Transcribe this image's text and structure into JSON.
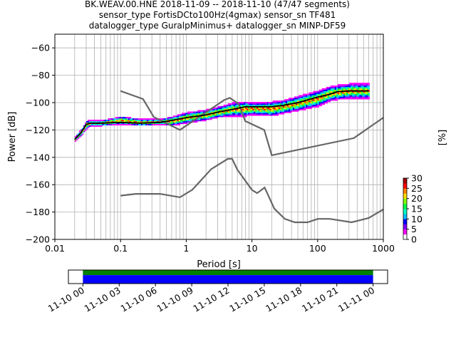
{
  "colors": {
    "noise_model": "#666666",
    "mean_line": "#000000",
    "timeline_green": "#008000",
    "timeline_blue": "#0000ff",
    "grid": "#b0b0b0"
  },
  "chart_data": [
    {
      "type": "heatmap",
      "title": [
        "BK.WEAV.00.HNE   2018-11-09 -- 2018-11-10  (47/47 segments)",
        "sensor_type FortisDCto100Hz(4gmax) sensor_sn TF481",
        "datalogger_type GuralpMinimus+ datalogger_sn MINP-DF59"
      ],
      "xlabel": "Period [s]",
      "ylabel": "Power [dB]",
      "xscale": "log",
      "xlim": [
        0.01,
        1000
      ],
      "ylim": [
        -200,
        -50
      ],
      "xticks": [
        {
          "value": 0.01,
          "label": "0.01"
        },
        {
          "value": 0.1,
          "label": "0.1"
        },
        {
          "value": 1,
          "label": "1"
        },
        {
          "value": 10,
          "label": "10"
        },
        {
          "value": 100,
          "label": "100"
        },
        {
          "value": 1000,
          "label": "1000"
        }
      ],
      "yticks": [
        -60,
        -80,
        -100,
        -120,
        -140,
        -160,
        -180,
        -200
      ],
      "grid": true,
      "colorbar": {
        "label": "[%]",
        "range": [
          0,
          30
        ],
        "ticks": [
          0,
          5,
          10,
          15,
          20,
          25,
          30
        ],
        "colormap": [
          "#ffffff",
          "#ff00ff",
          "#7f00ff",
          "#0000ff",
          "#00bfff",
          "#00ffc0",
          "#00ff40",
          "#80ff00",
          "#ffe000",
          "#ff7f00",
          "#ff0000",
          "#a00000"
        ]
      },
      "series": [
        {
          "role": "high_noise_model",
          "x": [
            0.1,
            0.22,
            0.32,
            0.8,
            3.8,
            4.6,
            6.3,
            7.9,
            15.4,
            20,
            354.8,
            1000
          ],
          "y": [
            -91.5,
            -97.4,
            -110.5,
            -120,
            -98,
            -96.5,
            -101,
            -113.5,
            -120,
            -138.5,
            -126,
            -111
          ]
        },
        {
          "role": "low_noise_model",
          "x": [
            0.1,
            0.17,
            0.4,
            0.8,
            1.24,
            2.4,
            4.3,
            5,
            6,
            10,
            12,
            15.6,
            21.9,
            31.6,
            45,
            70,
            101,
            154,
            328,
            600,
            1000
          ],
          "y": [
            -168,
            -166.7,
            -166.7,
            -169.2,
            -163.7,
            -148.6,
            -141.1,
            -141.1,
            -149,
            -163.8,
            -166.2,
            -162.1,
            -177.5,
            -185,
            -187.5,
            -187.5,
            -185,
            -185,
            -187.5,
            -184.4,
            -178
          ]
        },
        {
          "role": "mean_psd",
          "x": [
            0.02,
            0.025,
            0.03,
            0.035,
            0.05,
            0.1,
            0.2,
            0.4,
            0.6,
            1,
            2,
            3,
            5,
            8,
            10,
            20,
            30,
            50,
            100,
            150,
            200,
            300,
            600
          ],
          "y": [
            -127,
            -122,
            -116,
            -115,
            -115,
            -114.5,
            -115,
            -114.5,
            -113,
            -111,
            -109,
            -107,
            -105,
            -103,
            -103,
            -103,
            -102,
            -100,
            -96,
            -94,
            -92,
            -91.5,
            -91.5
          ]
        }
      ],
      "density_band": {
        "x": [
          0.02,
          0.025,
          0.03,
          0.035,
          0.05,
          0.1,
          0.2,
          0.4,
          0.6,
          1,
          2,
          3,
          5,
          8,
          10,
          20,
          30,
          50,
          100,
          150,
          200,
          300,
          600
        ],
        "upper": [
          -125,
          -119,
          -113,
          -113,
          -113,
          -110,
          -112,
          -112,
          -110,
          -107,
          -105,
          -103,
          -100,
          -99,
          -100,
          -99,
          -98,
          -95,
          -91,
          -88,
          -87,
          -86,
          -86
        ],
        "lower": [
          -128,
          -124,
          -119,
          -117,
          -117,
          -116,
          -117,
          -116,
          -117,
          -115,
          -113,
          -111,
          -110,
          -110,
          -109,
          -110,
          -108,
          -106,
          -103,
          -99,
          -98,
          -97,
          -97
        ]
      }
    },
    {
      "type": "timeline",
      "ticks": [
        "11-10 00",
        "11-10 03",
        "11-10 06",
        "11-10 09",
        "11-10 12",
        "11-10 15",
        "11-10 18",
        "11-10 21",
        "11-11 00"
      ],
      "tick_hours": [
        0,
        3,
        6,
        9,
        12,
        15,
        18,
        21,
        24
      ],
      "range_hours": [
        -1.2,
        25.2
      ],
      "bars": [
        {
          "name": "data",
          "color": "#008000",
          "start": 0,
          "end": 24
        },
        {
          "name": "psd",
          "color": "#0000ff",
          "start": 0,
          "end": 24
        }
      ]
    }
  ]
}
